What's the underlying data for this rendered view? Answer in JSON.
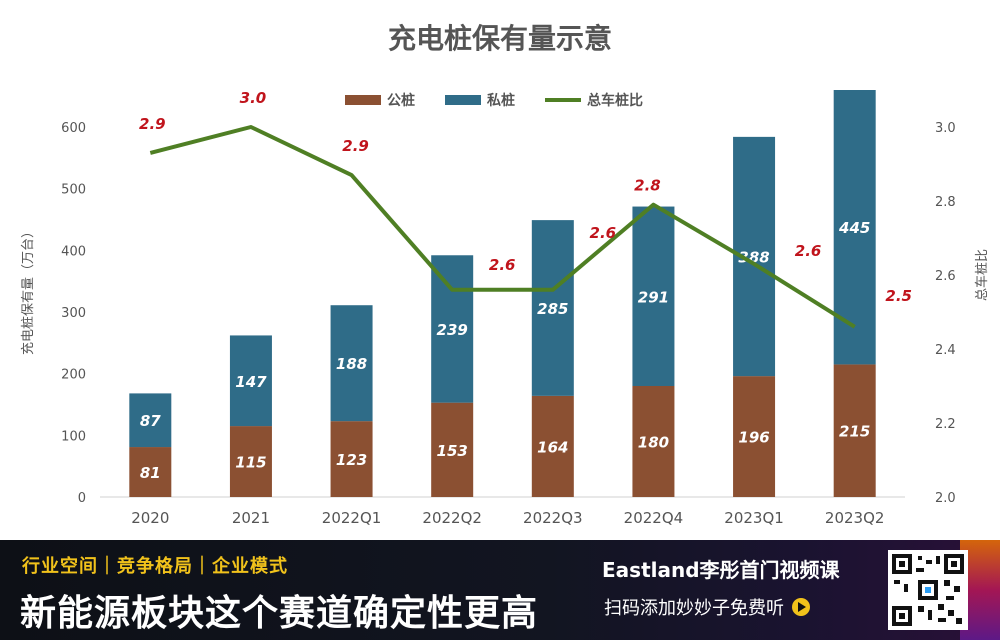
{
  "chart_data": {
    "type": "bar",
    "title": "充电桩保有量示意",
    "categories": [
      "2020",
      "2021",
      "2022Q1",
      "2022Q2",
      "2022Q3",
      "2022Q4",
      "2023Q1",
      "2023Q2"
    ],
    "series": [
      {
        "name": "公桩",
        "kind": "bar",
        "stack": "total",
        "color": "#8b5032",
        "values": [
          81,
          115,
          123,
          153,
          164,
          180,
          196,
          215
        ]
      },
      {
        "name": "私桩",
        "kind": "bar",
        "stack": "total",
        "color": "#2f6c88",
        "values": [
          87,
          147,
          188,
          239,
          285,
          291,
          388,
          445
        ]
      },
      {
        "name": "总车桩比",
        "kind": "line",
        "axis": "right",
        "color": "#4f7f24",
        "values": [
          2.93,
          3.0,
          2.87,
          2.56,
          2.56,
          2.79,
          2.63,
          2.46
        ],
        "labels": [
          "2.9",
          "3.0",
          "2.9",
          "2.6",
          "2.6",
          "2.8",
          "2.6",
          "2.5"
        ]
      }
    ],
    "ylabel": "充电桩保有量（万台）",
    "y2label": "总车桩比",
    "ylim": [
      0,
      660
    ],
    "yticks": [
      "0",
      "100",
      "200",
      "300",
      "400",
      "500",
      "600"
    ],
    "y2lim": [
      2.0,
      3.1
    ],
    "y2ticks": [
      "2.0",
      "2.2",
      "2.4",
      "2.6",
      "2.8",
      "3.0"
    ],
    "legend": "top-center",
    "grid": false
  },
  "banner": {
    "tags": "行业空间｜竞争格局｜企业模式",
    "headline": "新能源板块这个赛道确定性更高",
    "brand": "Eastland李彤首门视频课",
    "cta": "扫码添加妙妙子免费听",
    "accent": "#f1c21b"
  }
}
